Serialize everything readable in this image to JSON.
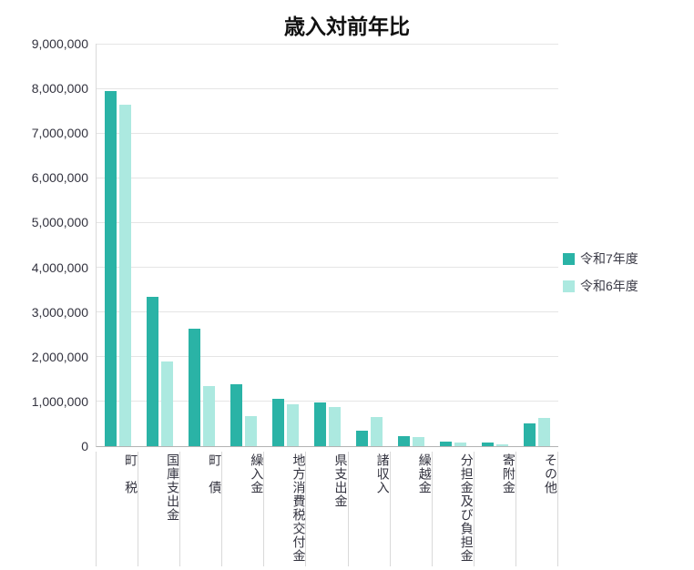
{
  "chart_data": {
    "type": "bar",
    "title": "歳入対前年比",
    "categories": [
      "町　税",
      "国庫支出金",
      "町　債",
      "繰入金",
      "地方消費税交付金",
      "県支出金",
      "諸収入",
      "繰越金",
      "分担金及び負担金",
      "寄附金",
      "その他"
    ],
    "series": [
      {
        "name": "令和7年度",
        "color": "#2ab3a6",
        "values": [
          7950000,
          3340000,
          2630000,
          1390000,
          1060000,
          980000,
          350000,
          220000,
          100000,
          80000,
          510000
        ]
      },
      {
        "name": "令和6年度",
        "color": "#ace9e0",
        "values": [
          7640000,
          1900000,
          1350000,
          670000,
          940000,
          880000,
          650000,
          200000,
          90000,
          40000,
          630000
        ]
      }
    ],
    "xlabel": "",
    "ylabel": "",
    "ylim": [
      0,
      9000000
    ],
    "yticks": [
      0,
      1000000,
      2000000,
      3000000,
      4000000,
      5000000,
      6000000,
      7000000,
      8000000,
      9000000
    ],
    "grid": true,
    "legend_position": "right"
  }
}
